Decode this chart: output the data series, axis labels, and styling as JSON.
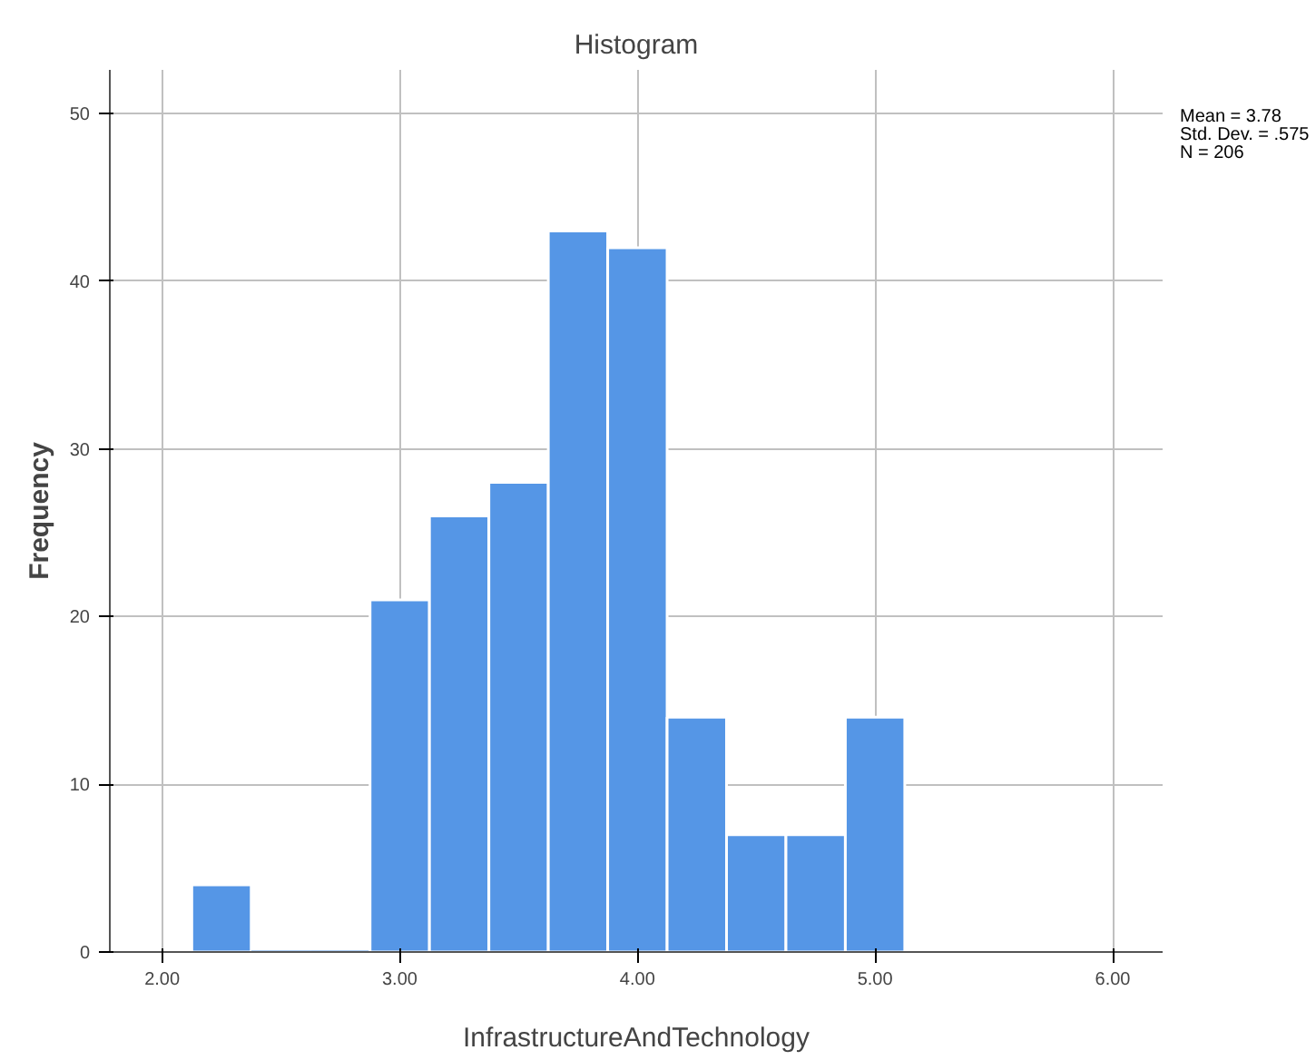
{
  "chart_data": {
    "type": "histogram",
    "title": "Histogram",
    "xlabel": "InfrastructureAndTechnology",
    "ylabel": "Frequency",
    "bins": [
      2.125,
      2.375,
      2.625,
      2.875,
      3.125,
      3.375,
      3.625,
      3.875,
      4.125,
      4.375,
      4.625,
      4.875,
      5.125
    ],
    "values": [
      4,
      0,
      0,
      21,
      26,
      28,
      43,
      42,
      14,
      7,
      7,
      14
    ],
    "color": "#5596e6",
    "xlim": [
      1.78,
      6.21
    ],
    "ylim": [
      0,
      52.6
    ],
    "xticks": [
      {
        "value": 2,
        "label": "2.00"
      },
      {
        "value": 3,
        "label": "3.00"
      },
      {
        "value": 4,
        "label": "4.00"
      },
      {
        "value": 5,
        "label": "5.00"
      },
      {
        "value": 6,
        "label": "6.00"
      }
    ],
    "yticks": [
      0,
      10,
      20,
      30,
      40,
      50
    ],
    "grid": true,
    "annotations": [
      "Mean = 3.78",
      "Std. Dev. = .575",
      "N = 206"
    ]
  }
}
